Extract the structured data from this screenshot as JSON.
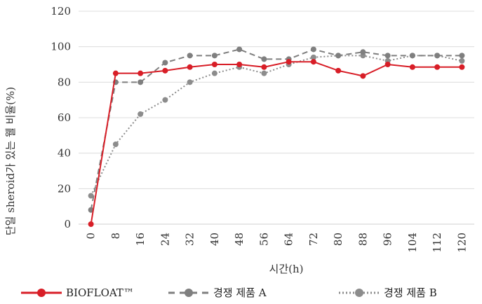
{
  "chart_data": {
    "type": "line",
    "title": "",
    "xlabel": "시간(h)",
    "ylabel": "단일 sheroid가 있는 웰 비율(%)",
    "ylim": [
      0,
      120
    ],
    "yticks": [
      0,
      20,
      40,
      60,
      80,
      100,
      120
    ],
    "grid": "horizontal",
    "legend_position": "bottom",
    "categories": [
      "0",
      "8",
      "16",
      "24",
      "32",
      "40",
      "48",
      "56",
      "64",
      "72",
      "80",
      "88",
      "96",
      "104",
      "112",
      "120"
    ],
    "series": [
      {
        "name": "BIOFLOAT™",
        "color": "#d81e27",
        "style": "solid",
        "values": [
          0,
          85,
          85,
          86.5,
          88.5,
          90,
          90,
          88.5,
          91.5,
          91.5,
          86.5,
          83.5,
          90,
          88.5,
          88.5,
          88.5
        ]
      },
      {
        "name": "경쟁 제품 A",
        "color": "#7f7f7f",
        "style": "dashed",
        "values": [
          8,
          80,
          80,
          91,
          95,
          95,
          98.5,
          93,
          93,
          98.5,
          95,
          97,
          95,
          95,
          95,
          95
        ]
      },
      {
        "name": "경쟁 제품 B",
        "color": "#8c8c8c",
        "style": "dotted",
        "values": [
          16,
          45,
          62,
          70,
          80,
          85,
          88.5,
          85,
          90,
          94,
          95,
          95,
          92,
          95,
          95,
          92
        ]
      }
    ]
  }
}
